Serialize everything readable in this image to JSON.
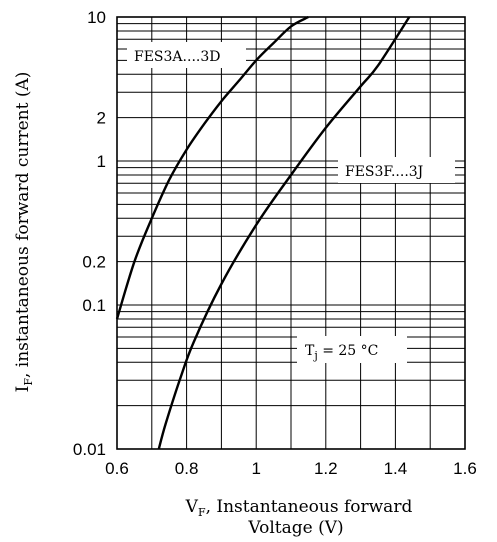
{
  "chart_data": {
    "type": "line",
    "title": "",
    "xlabel": {
      "main": "V",
      "sub": "F",
      "rest": ", Instantaneous forward",
      "line2": "Voltage (V)"
    },
    "ylabel": {
      "main": "I",
      "sub": "F",
      "rest": ", instantaneous forward current  (A)"
    },
    "xlim": [
      0.6,
      1.6
    ],
    "ylim": [
      0.01,
      10
    ],
    "yscale": "log",
    "grid": true,
    "x_ticks": [
      {
        "value": 0.6,
        "label": "0.6"
      },
      {
        "value": 0.8,
        "label": "0.8"
      },
      {
        "value": 1.0,
        "label": "1"
      },
      {
        "value": 1.2,
        "label": "1.2"
      },
      {
        "value": 1.4,
        "label": "1.4"
      },
      {
        "value": 1.6,
        "label": "1.6"
      }
    ],
    "y_ticks": [
      {
        "value": 10,
        "label": "10"
      },
      {
        "value": 2,
        "label": "2"
      },
      {
        "value": 1,
        "label": "1"
      },
      {
        "value": 0.2,
        "label": "0.2"
      },
      {
        "value": 0.1,
        "label": "0.1"
      },
      {
        "value": 0.01,
        "label": "0.01"
      }
    ],
    "series": [
      {
        "name": "FES3A....3D",
        "x": [
          0.6,
          0.65,
          0.7,
          0.75,
          0.8,
          0.85,
          0.9,
          0.95,
          1.0,
          1.05,
          1.1,
          1.15
        ],
        "y": [
          0.08,
          0.2,
          0.4,
          0.74,
          1.2,
          1.8,
          2.6,
          3.6,
          5.0,
          6.6,
          8.6,
          10
        ]
      },
      {
        "name": "FES3F....3J",
        "x": [
          0.72,
          0.74,
          0.78,
          0.82,
          0.9,
          1.0,
          1.1,
          1.2,
          1.3,
          1.35,
          1.44
        ],
        "y": [
          0.01,
          0.015,
          0.03,
          0.055,
          0.14,
          0.36,
          0.8,
          1.7,
          3.3,
          4.6,
          10
        ]
      }
    ],
    "annotations": {
      "series1_label": "FES3A....3D",
      "series2_label": "FES3F....3J",
      "condition": {
        "main": "T",
        "sub": "j",
        "rest": " = 25 °C"
      }
    }
  }
}
